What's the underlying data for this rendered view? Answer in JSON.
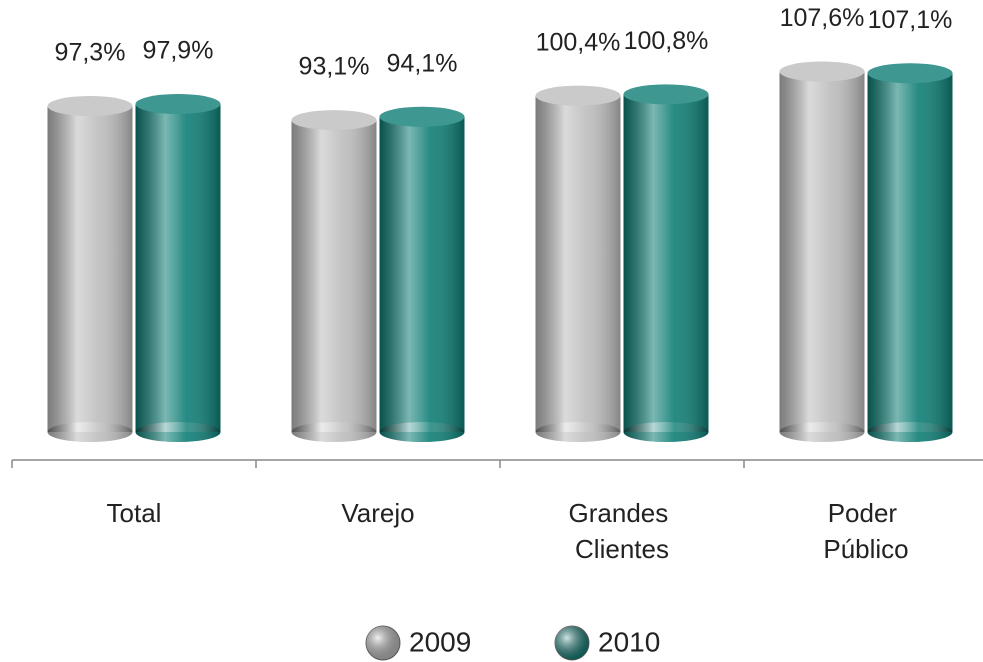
{
  "chart_data": {
    "type": "bar",
    "categories": [
      "Total",
      "Varejo",
      "Grandes Clientes",
      "Poder Público"
    ],
    "series": [
      {
        "name": "2009",
        "color": "#bdbdbd",
        "values": [
          97.3,
          93.1,
          100.4,
          107.6
        ],
        "value_labels": [
          "97,3%",
          "93,1%",
          "100,4%",
          "107,6%"
        ]
      },
      {
        "name": "2010",
        "color": "#0e7d75",
        "values": [
          97.9,
          94.1,
          100.8,
          107.1
        ],
        "value_labels": [
          "97,9%",
          "94,1%",
          "100,8%",
          "107,1%"
        ]
      }
    ],
    "ylim": [
      0,
      120
    ],
    "legend": "bottom"
  }
}
